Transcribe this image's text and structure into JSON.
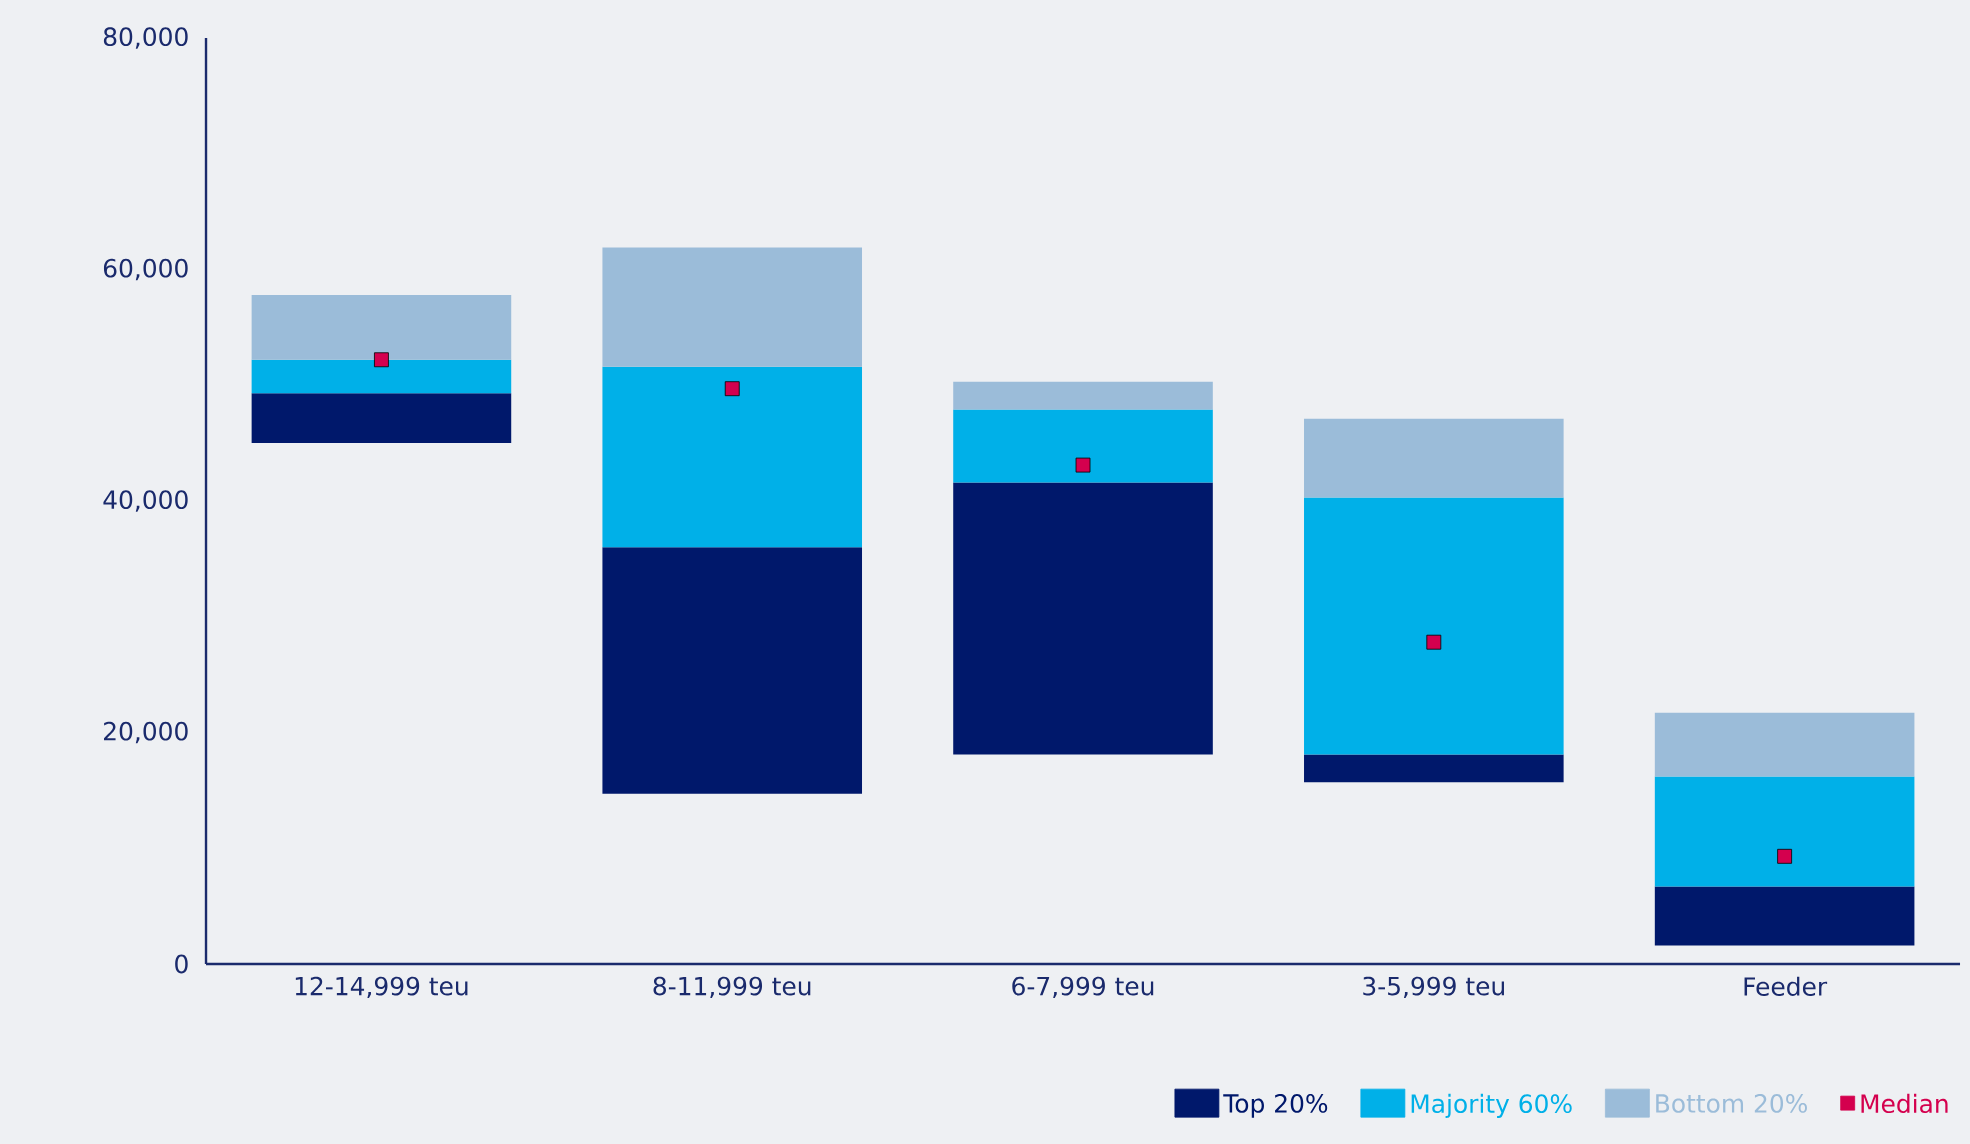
{
  "chart_data": {
    "type": "bar",
    "categories": [
      "12-14,999 teu",
      "8-11,999 teu",
      "6-7,999 teu",
      "3-5,999 teu",
      "Feeder"
    ],
    "series": [
      {
        "name": "Top 20%",
        "color": "#00186b",
        "base": [
          45000,
          14700,
          18100,
          15700,
          1600
        ],
        "values": [
          4300,
          21300,
          23500,
          2400,
          5100
        ]
      },
      {
        "name": "Majority 60%",
        "color": "#00b0e8",
        "base": [
          49300,
          36000,
          41600,
          18100,
          6700
        ],
        "values": [
          2900,
          15600,
          6300,
          22200,
          9500
        ]
      },
      {
        "name": "Bottom 20%",
        "color": "#9bbcd9",
        "base": [
          52200,
          51600,
          47900,
          40300,
          16200
        ],
        "values": [
          5600,
          10300,
          2400,
          6800,
          5500
        ]
      },
      {
        "name": "Median",
        "type": "scatter",
        "marker": "square",
        "color": "#d4004e",
        "x": [
          "12-14,999 teu",
          "8-11,999 teu",
          "6-7,999 teu",
          "3-5,999 teu",
          "Feeder"
        ],
        "values": [
          52200,
          49700,
          43100,
          27800,
          9300
        ]
      }
    ],
    "ylim": [
      0,
      80000
    ],
    "yticks": [
      0,
      {
        "value": 20000,
        "label": "20,000"
      },
      {
        "value": 40000,
        "label": "40,000"
      },
      {
        "value": 60000,
        "label": "60,000"
      },
      {
        "value": 80000,
        "label": "80,000"
      }
    ],
    "legend": "bottom right"
  }
}
